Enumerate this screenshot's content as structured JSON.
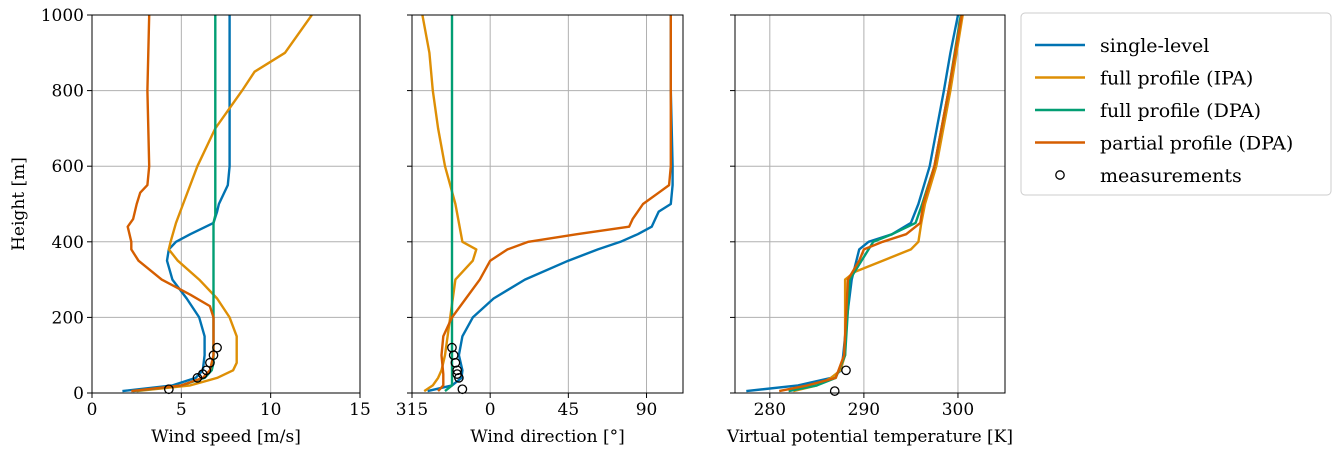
{
  "chart_data": [
    {
      "type": "line",
      "xlabel": "Wind speed [m/s]",
      "ylabel": "Height [m]",
      "xlim": [
        0,
        15
      ],
      "xticks": [
        0,
        5,
        10,
        15
      ],
      "ylim": [
        0,
        1000
      ],
      "yticks": [
        0,
        200,
        400,
        600,
        800,
        1000
      ],
      "show_ytick_labels": true,
      "grid": true,
      "legend": "outside upper right",
      "series": [
        {
          "name": "single-level",
          "color": "#0173b2",
          "x": [
            1.7,
            4.5,
            5.8,
            6.2,
            6.3,
            6.3,
            6.0,
            5.3,
            4.5,
            4.2,
            4.3,
            4.7,
            5.5,
            6.8,
            7.0,
            7.1,
            7.6,
            7.7,
            7.7,
            7.7
          ],
          "y": [
            5,
            20,
            40,
            60,
            100,
            150,
            200,
            250,
            300,
            350,
            380,
            400,
            420,
            450,
            480,
            500,
            550,
            600,
            800,
            1000
          ]
        },
        {
          "name": "full profile (IPA)",
          "color": "#de8f05",
          "x": [
            2.5,
            5.5,
            7.0,
            7.9,
            8.1,
            8.1,
            8.1,
            7.7,
            7.0,
            6.0,
            4.8,
            4.3,
            4.4,
            4.7,
            5.1,
            5.9,
            6.9,
            8.4,
            9.1,
            10.8,
            12.3
          ],
          "y": [
            5,
            20,
            40,
            60,
            80,
            100,
            150,
            200,
            250,
            300,
            350,
            380,
            400,
            450,
            500,
            600,
            700,
            800,
            850,
            900,
            1000
          ]
        },
        {
          "name": "full profile (DPA)",
          "color": "#029e73",
          "x": [
            2.3,
            5.0,
            6.3,
            6.7,
            6.8,
            6.8,
            6.8,
            6.9,
            6.9
          ],
          "y": [
            5,
            20,
            40,
            60,
            80,
            100,
            450,
            470,
            1000
          ]
        },
        {
          "name": "partial profile (DPA)",
          "color": "#d55e00",
          "x": [
            2.2,
            5.0,
            6.2,
            6.6,
            6.8,
            6.8,
            6.6,
            5.5,
            3.9,
            2.6,
            2.2,
            2.2,
            2.1,
            2.0,
            2.3,
            2.5,
            2.7,
            3.1,
            3.2,
            3.1,
            3.2
          ],
          "y": [
            5,
            20,
            40,
            60,
            100,
            200,
            230,
            260,
            300,
            350,
            380,
            400,
            420,
            440,
            460,
            500,
            530,
            550,
            600,
            800,
            1000
          ]
        },
        {
          "name": "measurements",
          "type": "scatter",
          "color": "#000000",
          "x": [
            4.3,
            5.9,
            6.2,
            6.4,
            6.6,
            6.8,
            7.0
          ],
          "y": [
            10,
            40,
            50,
            60,
            80,
            100,
            120
          ]
        }
      ]
    },
    {
      "type": "line",
      "xlabel": "Wind direction [°]",
      "xlim": [
        -45,
        111
      ],
      "xticks": [
        {
          "value": -45,
          "label": "315"
        },
        0,
        45,
        90
      ],
      "ylim": [
        0,
        1000
      ],
      "yticks": [
        0,
        200,
        400,
        600,
        800,
        1000
      ],
      "show_ytick_labels": false,
      "grid": true,
      "series": [
        {
          "color": "#0173b2",
          "x": [
            -36,
            -22,
            -16.5,
            -16,
            -18,
            -16,
            -10,
            2,
            20,
            45,
            62,
            75,
            85,
            93,
            95,
            97,
            104,
            105,
            105,
            104,
            104
          ],
          "y": [
            5,
            20,
            40,
            60,
            100,
            150,
            200,
            250,
            300,
            350,
            380,
            400,
            420,
            440,
            460,
            480,
            500,
            550,
            600,
            800,
            1000
          ]
        },
        {
          "color": "#de8f05",
          "x": [
            -38,
            -33,
            -30,
            -28,
            -26,
            -23,
            -20,
            -10,
            -8,
            -16,
            -18,
            -20,
            -23,
            -26,
            -30,
            -33,
            -35,
            -39
          ],
          "y": [
            5,
            20,
            40,
            60,
            100,
            200,
            300,
            350,
            380,
            400,
            450,
            500,
            550,
            600,
            700,
            800,
            900,
            1000
          ]
        },
        {
          "color": "#029e73",
          "x": [
            -26,
            -22,
            -22
          ],
          "y": [
            5,
            20,
            1000
          ]
        },
        {
          "color": "#d55e00",
          "x": [
            -30,
            -27,
            -27,
            -28,
            -27,
            -22,
            -14,
            -6,
            0,
            10,
            22,
            50,
            80,
            82,
            88,
            97,
            103,
            104,
            104
          ],
          "y": [
            5,
            20,
            50,
            100,
            150,
            200,
            250,
            300,
            350,
            380,
            400,
            420,
            440,
            460,
            500,
            530,
            550,
            600,
            1000
          ]
        },
        {
          "type": "scatter",
          "color": "#000000",
          "x": [
            -16,
            -18,
            -19,
            -19,
            -20,
            -21,
            -22
          ],
          "y": [
            10,
            40,
            50,
            60,
            80,
            100,
            120
          ]
        }
      ]
    },
    {
      "type": "line",
      "xlabel": "Virtual potential temperature [K]",
      "xlim": [
        276.3,
        305
      ],
      "xticks": [
        280,
        290,
        300
      ],
      "ylim": [
        0,
        1000
      ],
      "yticks": [
        0,
        200,
        400,
        600,
        800,
        1000
      ],
      "show_ytick_labels": false,
      "grid": true,
      "series": [
        {
          "color": "#0173b2",
          "x": [
            277.5,
            283,
            286.5,
            287.6,
            287.8,
            288.2,
            288.7,
            289.5,
            290.5,
            293,
            295,
            295.8,
            297,
            298.5,
            299.2,
            300
          ],
          "y": [
            5,
            20,
            40,
            60,
            100,
            200,
            300,
            380,
            400,
            420,
            450,
            500,
            600,
            800,
            900,
            1000
          ]
        },
        {
          "color": "#de8f05",
          "x": [
            282.5,
            285,
            286.5,
            287.5,
            288,
            288,
            289,
            292,
            295,
            295.8,
            296.1,
            296.5,
            297.7,
            299.2,
            300.5
          ],
          "y": [
            5,
            20,
            40,
            60,
            100,
            300,
            320,
            350,
            380,
            400,
            450,
            500,
            600,
            800,
            1000
          ]
        },
        {
          "color": "#029e73",
          "x": [
            282,
            285,
            287,
            288,
            288.5,
            291,
            293,
            295.5,
            296.2,
            297.5,
            299,
            300.3
          ],
          "y": [
            5,
            20,
            40,
            100,
            300,
            400,
            420,
            450,
            500,
            600,
            800,
            1000
          ]
        },
        {
          "color": "#d55e00",
          "x": [
            281,
            284,
            287,
            287.9,
            288.3,
            289.5,
            290,
            292,
            294.5,
            296,
            296.3,
            297.5,
            299,
            300.4
          ],
          "y": [
            5,
            20,
            40,
            100,
            300,
            350,
            380,
            400,
            420,
            450,
            500,
            600,
            800,
            1000
          ]
        },
        {
          "type": "scatter",
          "color": "#000000",
          "x": [
            286.9,
            288.1
          ],
          "y": [
            5,
            60
          ]
        }
      ]
    }
  ]
}
